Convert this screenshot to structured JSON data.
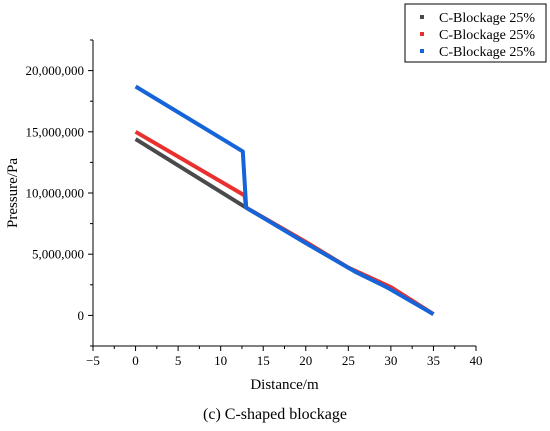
{
  "chart_data": {
    "type": "line",
    "xlabel": "Distance/m",
    "ylabel": "Pressure/Pa",
    "caption": "(c) C-shaped blockage",
    "xlim": [
      -5,
      40
    ],
    "ylim": [
      -2500000,
      22500000
    ],
    "xticks": [
      "−5",
      "0",
      "5",
      "10",
      "15",
      "20",
      "25",
      "30",
      "35",
      "40"
    ],
    "yticks": [
      "0",
      "5,000,000",
      "10,000,000",
      "15,000,000",
      "20,000,000"
    ],
    "legend_position": "top-right",
    "series": [
      {
        "name": "C-Blockage 25%",
        "color": "#4a4a4a",
        "x": [
          0,
          13,
          20,
          25,
          30,
          35
        ],
        "y": [
          14400000,
          8800000,
          6000000,
          3900000,
          2300000,
          100000
        ]
      },
      {
        "name": "C-Blockage 25%",
        "color": "#e8312f",
        "x": [
          0,
          12.8,
          13,
          20,
          25,
          30,
          35
        ],
        "y": [
          15000000,
          9800000,
          8800000,
          6000000,
          3900000,
          2300000,
          100000
        ]
      },
      {
        "name": "C-Blockage 25%",
        "color": "#1565d8",
        "x": [
          0,
          12.6,
          13,
          20,
          26,
          29.5,
          35
        ],
        "y": [
          18700000,
          13400000,
          8800000,
          5900000,
          3500000,
          2300000,
          100000
        ]
      }
    ]
  }
}
